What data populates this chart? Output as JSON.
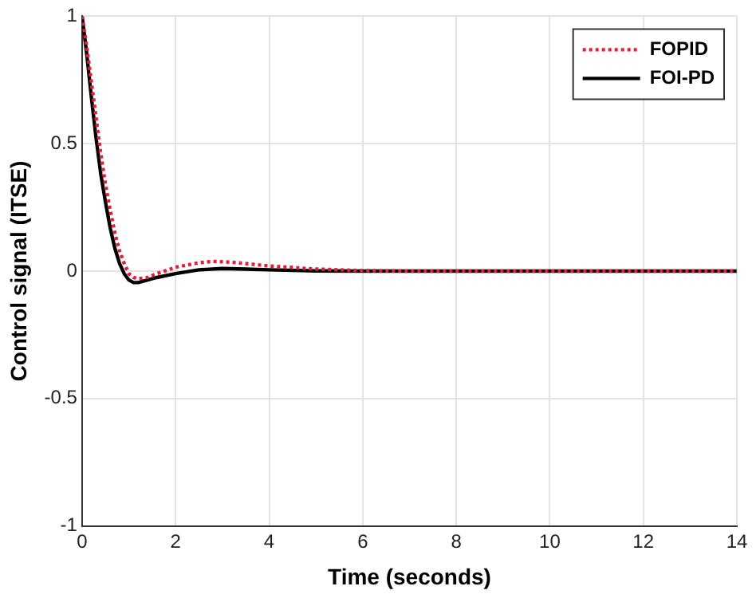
{
  "chart_data": {
    "type": "line",
    "xlabel": "Time (seconds)",
    "ylabel": "Control signal (ITSE)",
    "xlim": [
      0,
      14
    ],
    "ylim": [
      -1,
      1
    ],
    "xticks": [
      0,
      2,
      4,
      6,
      8,
      10,
      12,
      14
    ],
    "yticks": [
      -1,
      -0.5,
      0,
      0.5,
      1
    ],
    "grid": true,
    "legend": "top right",
    "marker": "none",
    "series": [
      {
        "name": "FOPID",
        "color": "#e0203a",
        "line_style": "dotted",
        "x": [
          0,
          0.1,
          0.2,
          0.3,
          0.4,
          0.5,
          0.6,
          0.7,
          0.8,
          0.9,
          1.0,
          1.1,
          1.2,
          1.4,
          1.6,
          2.0,
          2.5,
          2.8,
          3.2,
          4,
          5,
          6,
          7,
          14
        ],
        "values": [
          1,
          0.88,
          0.74,
          0.6,
          0.46,
          0.34,
          0.24,
          0.15,
          0.08,
          0.03,
          -0.01,
          -0.025,
          -0.03,
          -0.025,
          -0.01,
          0.015,
          0.033,
          0.038,
          0.035,
          0.02,
          0.008,
          0.002,
          0,
          0
        ]
      },
      {
        "name": "FOI-PD",
        "color": "#000000",
        "line_style": "solid",
        "x": [
          0,
          0.1,
          0.2,
          0.3,
          0.4,
          0.5,
          0.6,
          0.7,
          0.8,
          0.9,
          1.0,
          1.1,
          1.2,
          1.4,
          1.6,
          2.0,
          2.5,
          3,
          3.5,
          4,
          5,
          6,
          14
        ],
        "values": [
          1,
          0.85,
          0.68,
          0.52,
          0.38,
          0.27,
          0.17,
          0.09,
          0.03,
          -0.01,
          -0.035,
          -0.045,
          -0.045,
          -0.035,
          -0.025,
          -0.01,
          0.005,
          0.01,
          0.008,
          0.005,
          0.001,
          0,
          0
        ]
      }
    ]
  }
}
